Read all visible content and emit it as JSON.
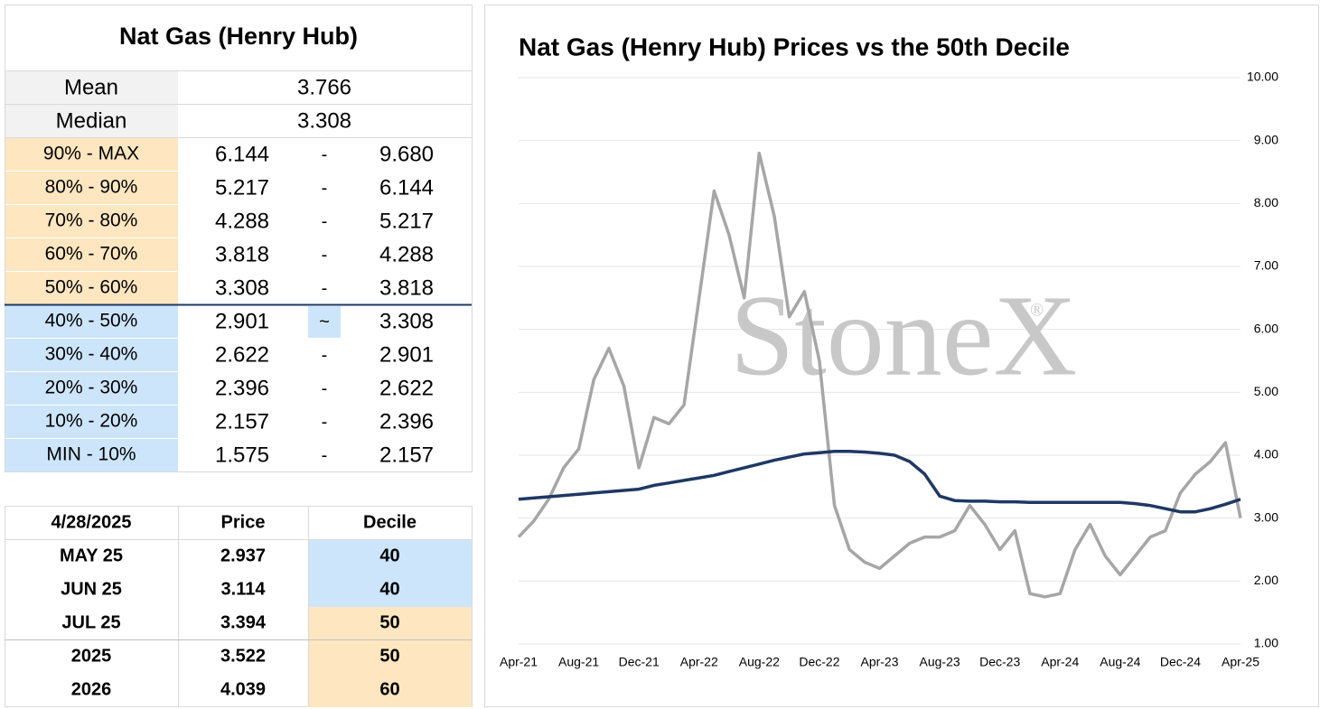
{
  "stats_table": {
    "title": "Nat Gas (Henry Hub)",
    "summary": [
      [
        "Mean",
        "3.766"
      ],
      [
        "Median",
        "3.308"
      ]
    ],
    "rows": [
      {
        "cells": [
          "90% - MAX",
          "6.144",
          "-",
          "9.680"
        ],
        "color": "#fde6c0"
      },
      {
        "cells": [
          "80% - 90%",
          "5.217",
          "-",
          "6.144"
        ],
        "color": "#fde6c0"
      },
      {
        "cells": [
          "70% - 80%",
          "4.288",
          "-",
          "5.217"
        ],
        "color": "#fde6c0"
      },
      {
        "cells": [
          "60% - 70%",
          "3.818",
          "-",
          "4.288"
        ],
        "color": "#fde6c0"
      },
      {
        "cells": [
          "50% - 60%",
          "3.308",
          "-",
          "3.818"
        ],
        "color": "#fde6c0"
      },
      {
        "cells": [
          "40% - 50%",
          "2.901",
          "~",
          "3.308"
        ],
        "color": "#cde5fb",
        "highlight": true
      },
      {
        "cells": [
          "30% - 40%",
          "2.622",
          "-",
          "2.901"
        ],
        "color": "#cde5fb"
      },
      {
        "cells": [
          "20% - 30%",
          "2.396",
          "-",
          "2.622"
        ],
        "color": "#cde5fb"
      },
      {
        "cells": [
          "10% - 20%",
          "2.157",
          "-",
          "2.396"
        ],
        "color": "#cde5fb"
      },
      {
        "cells": [
          "MIN - 10%",
          "1.575",
          "-",
          "2.157"
        ],
        "color": "#cde5fb"
      }
    ]
  },
  "futures_table": {
    "header": [
      "4/28/2025",
      "Price",
      "Decile"
    ],
    "rows": [
      {
        "cells": [
          "MAY 25",
          "2.937",
          "40"
        ],
        "color": "#cde5fb"
      },
      {
        "cells": [
          "JUN 25",
          "3.114",
          "40"
        ],
        "color": "#cde5fb"
      },
      {
        "cells": [
          "JUL 25",
          "3.394",
          "50"
        ],
        "color": "#fde6c0"
      },
      {
        "cells": [
          "2025",
          "3.522",
          "50"
        ],
        "color": "#fde6c0"
      },
      {
        "cells": [
          "2026",
          "4.039",
          "60"
        ],
        "color": "#fde6c0"
      }
    ]
  },
  "chart_data": {
    "type": "line",
    "title": "Nat Gas (Henry Hub) Prices vs the 50th Decile",
    "watermark": "StoneX",
    "watermark_sign": "®",
    "categories": [
      "Apr-21",
      null,
      null,
      null,
      "Aug-21",
      null,
      null,
      null,
      "Dec-21",
      null,
      null,
      null,
      "Apr-22",
      null,
      null,
      null,
      "Aug-22",
      null,
      null,
      null,
      "Dec-22",
      null,
      null,
      null,
      "Apr-23",
      null,
      null,
      null,
      "Aug-23",
      null,
      null,
      null,
      "Dec-23",
      null,
      null,
      null,
      "Apr-24",
      null,
      null,
      null,
      "Aug-24",
      null,
      null,
      null,
      "Dec-24",
      null,
      null,
      null,
      "Apr-25"
    ],
    "series": [
      {
        "color": "#a6a6a6",
        "values": [
          2.7,
          2.95,
          3.3,
          3.8,
          4.1,
          5.2,
          5.7,
          5.1,
          3.8,
          4.6,
          4.5,
          4.8,
          6.5,
          8.2,
          7.5,
          6.5,
          8.8,
          7.8,
          6.2,
          6.6,
          5.5,
          3.2,
          2.5,
          2.3,
          2.2,
          2.4,
          2.6,
          2.7,
          2.7,
          2.8,
          3.2,
          2.9,
          2.5,
          2.8,
          1.8,
          1.75,
          1.8,
          2.5,
          2.9,
          2.4,
          2.1,
          2.4,
          2.7,
          2.8,
          3.4,
          3.7,
          3.9,
          4.2,
          3.0
        ]
      },
      {
        "color": "#1f3864",
        "values": [
          3.3,
          3.32,
          3.34,
          3.36,
          3.38,
          3.4,
          3.42,
          3.44,
          3.46,
          3.52,
          3.56,
          3.6,
          3.64,
          3.68,
          3.74,
          3.8,
          3.86,
          3.92,
          3.97,
          4.02,
          4.04,
          4.06,
          4.06,
          4.05,
          4.03,
          4.0,
          3.9,
          3.7,
          3.35,
          3.28,
          3.27,
          3.27,
          3.26,
          3.26,
          3.25,
          3.25,
          3.25,
          3.25,
          3.25,
          3.25,
          3.25,
          3.23,
          3.2,
          3.15,
          3.1,
          3.1,
          3.15,
          3.22,
          3.3
        ]
      }
    ],
    "ylim": [
      1,
      10
    ],
    "yticks": [
      {
        "value": 1,
        "label": "1.00"
      },
      {
        "value": 2,
        "label": "2.00"
      },
      {
        "value": 3,
        "label": "3.00"
      },
      {
        "value": 4,
        "label": "4.00"
      },
      {
        "value": 5,
        "label": "5.00"
      },
      {
        "value": 6,
        "label": "6.00"
      },
      {
        "value": 7,
        "label": "7.00"
      },
      {
        "value": 8,
        "label": "8.00"
      },
      {
        "value": 9,
        "label": "9.00"
      },
      {
        "value": 10,
        "label": "10.00"
      }
    ],
    "grid": true
  }
}
